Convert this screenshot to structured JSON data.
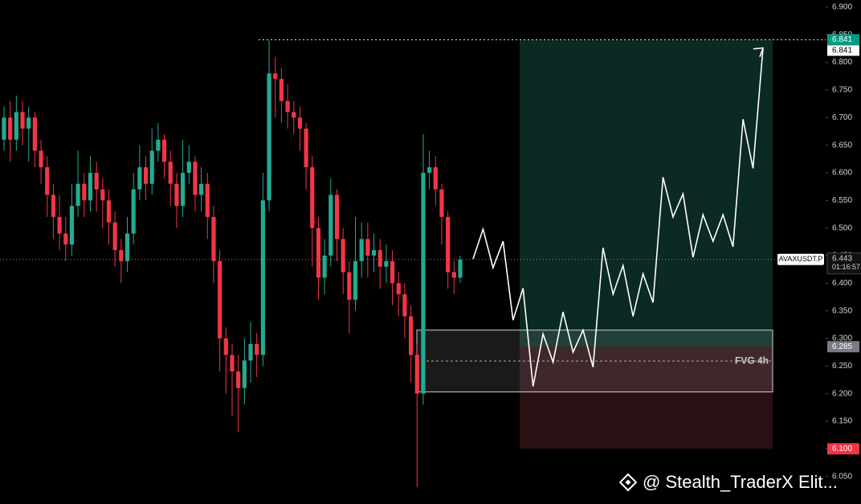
{
  "chart_data": {
    "type": "candlestick",
    "symbol": "AVAXUSDT.P",
    "countdown": "01:16:57",
    "up_color": "#22ab94",
    "down_color": "#f23645",
    "open": [
      6.66,
      6.7,
      6.66,
      6.71,
      6.68,
      6.7,
      6.64,
      6.61,
      6.56,
      6.52,
      6.49,
      6.47,
      6.54,
      6.58,
      6.55,
      6.6,
      6.57,
      6.55,
      6.51,
      6.46,
      6.44,
      6.49,
      6.57,
      6.61,
      6.58,
      6.64,
      6.66,
      6.62,
      6.58,
      6.54,
      6.6,
      6.62,
      6.56,
      6.58,
      6.52,
      6.44,
      6.3,
      6.27,
      6.24,
      6.21,
      6.26,
      6.29,
      6.27,
      6.55,
      6.78,
      6.77,
      6.73,
      6.71,
      6.7,
      6.68,
      6.61,
      6.5,
      6.41,
      6.45,
      6.56,
      6.48,
      6.42,
      6.37,
      6.44,
      6.48,
      6.45,
      6.46,
      6.43,
      6.44,
      6.4,
      6.38,
      6.34,
      6.27,
      6.2,
      6.6,
      6.61,
      6.57,
      6.52,
      6.42,
      6.41
    ],
    "high": [
      6.72,
      6.73,
      6.74,
      6.73,
      6.72,
      6.71,
      6.66,
      6.63,
      6.58,
      6.56,
      6.52,
      6.58,
      6.64,
      6.6,
      6.63,
      6.62,
      6.59,
      6.57,
      6.53,
      6.48,
      6.52,
      6.6,
      6.65,
      6.63,
      6.68,
      6.69,
      6.67,
      6.64,
      6.6,
      6.66,
      6.65,
      6.63,
      6.61,
      6.6,
      6.54,
      6.46,
      6.32,
      6.29,
      6.27,
      6.3,
      6.33,
      6.31,
      6.6,
      6.84,
      6.81,
      6.79,
      6.76,
      6.73,
      6.72,
      6.69,
      6.63,
      6.52,
      6.48,
      6.59,
      6.57,
      6.5,
      6.44,
      6.52,
      6.51,
      6.51,
      6.49,
      6.48,
      6.47,
      6.46,
      6.42,
      6.4,
      6.36,
      6.29,
      6.67,
      6.64,
      6.63,
      6.58,
      6.53,
      6.44,
      6.45
    ],
    "low": [
      6.64,
      6.62,
      6.64,
      6.65,
      6.62,
      6.61,
      6.58,
      6.52,
      6.48,
      6.46,
      6.44,
      6.45,
      6.52,
      6.52,
      6.53,
      6.53,
      6.5,
      6.47,
      6.43,
      6.4,
      6.42,
      6.47,
      6.55,
      6.55,
      6.56,
      6.62,
      6.59,
      6.54,
      6.5,
      6.52,
      6.58,
      6.53,
      6.53,
      6.48,
      6.4,
      6.24,
      6.2,
      6.16,
      6.13,
      6.18,
      6.22,
      6.23,
      6.25,
      6.53,
      6.7,
      6.69,
      6.68,
      6.67,
      6.64,
      6.57,
      6.43,
      6.37,
      6.38,
      6.43,
      6.44,
      6.38,
      6.31,
      6.35,
      6.41,
      6.41,
      6.42,
      6.39,
      6.4,
      6.36,
      6.34,
      6.3,
      6.22,
      6.03,
      6.18,
      6.57,
      6.54,
      6.47,
      6.39,
      6.38,
      6.4
    ],
    "close": [
      6.7,
      6.66,
      6.71,
      6.68,
      6.7,
      6.64,
      6.61,
      6.56,
      6.52,
      6.49,
      6.47,
      6.54,
      6.58,
      6.55,
      6.6,
      6.57,
      6.55,
      6.51,
      6.46,
      6.44,
      6.49,
      6.57,
      6.61,
      6.58,
      6.64,
      6.66,
      6.62,
      6.58,
      6.54,
      6.6,
      6.62,
      6.56,
      6.58,
      6.52,
      6.44,
      6.3,
      6.27,
      6.24,
      6.21,
      6.26,
      6.29,
      6.27,
      6.55,
      6.78,
      6.77,
      6.73,
      6.71,
      6.7,
      6.68,
      6.61,
      6.5,
      6.41,
      6.45,
      6.56,
      6.48,
      6.42,
      6.37,
      6.44,
      6.48,
      6.45,
      6.46,
      6.43,
      6.44,
      6.4,
      6.38,
      6.34,
      6.27,
      6.2,
      6.6,
      6.61,
      6.57,
      6.52,
      6.42,
      6.41,
      6.443
    ],
    "projection": {
      "color": "#ffffff",
      "values": [
        6.444,
        6.498,
        6.428,
        6.476,
        6.333,
        6.391,
        6.213,
        6.308,
        6.257,
        6.348,
        6.275,
        6.315,
        6.248,
        6.464,
        6.38,
        6.432,
        6.34,
        6.417,
        6.365,
        6.592,
        6.52,
        6.562,
        6.447,
        6.524,
        6.476,
        6.524,
        6.466,
        6.697,
        6.608,
        6.826
      ]
    },
    "position": {
      "target": 6.841,
      "entry": 6.285,
      "stop": {
        "value": 6.1,
        "label": "6.100"
      }
    },
    "fvg": {
      "label": "FVG 4h",
      "top": 6.315,
      "bottom": 6.203
    },
    "ylim": [
      6.0,
      6.913
    ],
    "yticks": [
      {
        "value": 6.05,
        "label": "6.050"
      },
      {
        "value": 6.1,
        "label": "6.100"
      },
      {
        "value": 6.15,
        "label": "6.150"
      },
      {
        "value": 6.2,
        "label": "6.200"
      },
      {
        "value": 6.25,
        "label": "6.250"
      },
      {
        "value": 6.3,
        "label": "6.300"
      },
      {
        "value": 6.35,
        "label": "6.350"
      },
      {
        "value": 6.4,
        "label": "6.400"
      },
      {
        "value": 6.45,
        "label": "6.450"
      },
      {
        "value": 6.5,
        "label": "6.500"
      },
      {
        "value": 6.55,
        "label": "6.550"
      },
      {
        "value": 6.6,
        "label": "6.600"
      },
      {
        "value": 6.65,
        "label": "6.650"
      },
      {
        "value": 6.7,
        "label": "6.700"
      },
      {
        "value": 6.75,
        "label": "6.750"
      },
      {
        "value": 6.8,
        "label": "6.800"
      },
      {
        "value": 6.85,
        "label": "6.850"
      },
      {
        "value": 6.9,
        "label": "6.900"
      }
    ],
    "watermark": "@ Stealth_TraderX Elit..."
  }
}
